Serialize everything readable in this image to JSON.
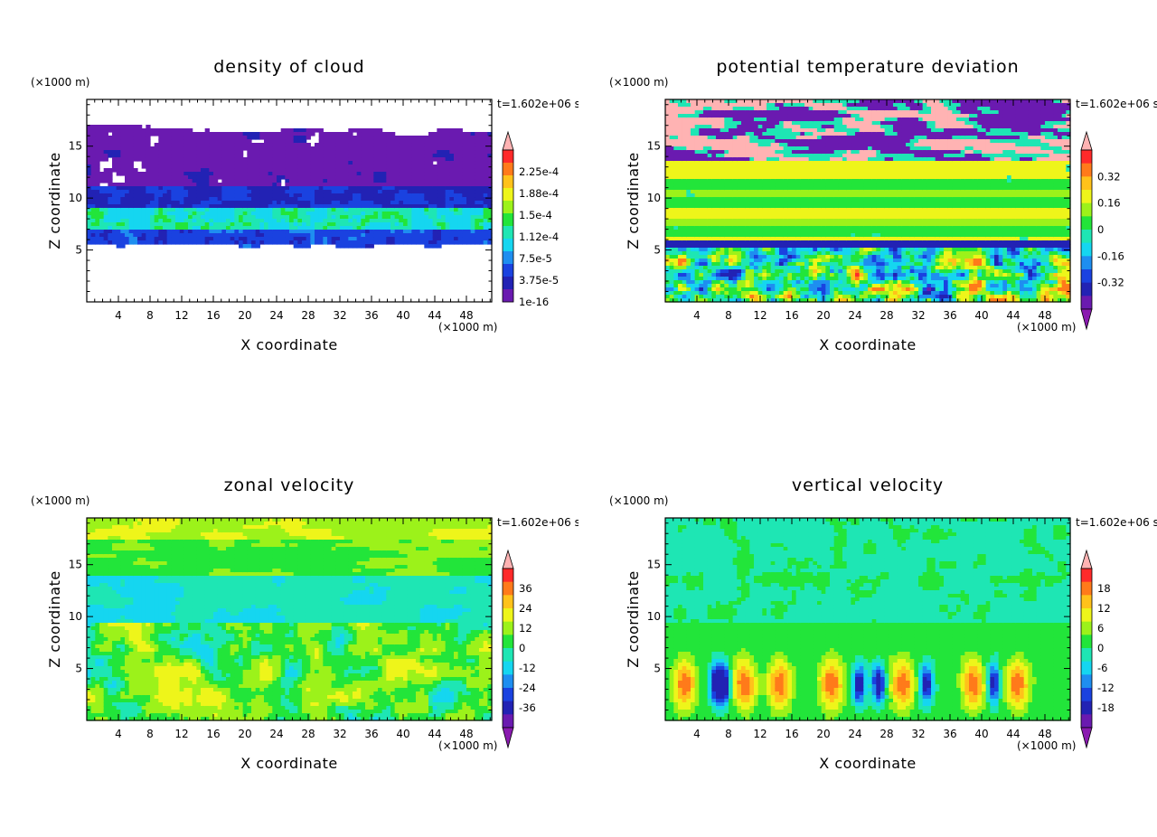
{
  "chart_data": [
    {
      "type": "heatmap",
      "title": "density of cloud",
      "xlabel": "X coordinate",
      "ylabel": "Z coordinate",
      "x_unit": "(×1000 m)",
      "y_unit": "(×1000 m)",
      "time": "t=1.602e+06 s",
      "xlim": [
        0,
        51.2
      ],
      "ylim": [
        0,
        19.5
      ],
      "xticks": [
        4,
        8,
        12,
        16,
        20,
        24,
        28,
        32,
        36,
        40,
        44,
        48
      ],
      "yticks": [
        5,
        10,
        15
      ],
      "colorbar_labels": [
        "2.25e-4",
        "1.88e-4",
        "1.5e-4",
        "1.12e-4",
        "7.5e-5",
        "3.75e-5",
        "1e-16"
      ],
      "colorbar_colors": [
        "#ffb3b3",
        "#ff2a2a",
        "#ff7a1a",
        "#ffc21a",
        "#eef51a",
        "#9cf21a",
        "#22e53a",
        "#1ee6b4",
        "#15d6f0",
        "#1e8ef0",
        "#1a42e0",
        "#2222b4",
        "#6a1ab0"
      ],
      "colorbar_extend": "max"
    },
    {
      "type": "heatmap",
      "title": "potential temperature deviation",
      "xlabel": "X coordinate",
      "ylabel": "Z coordinate",
      "x_unit": "(×1000 m)",
      "y_unit": "(×1000 m)",
      "time": "t=1.602e+06 s",
      "xlim": [
        0,
        51.2
      ],
      "ylim": [
        0,
        19.5
      ],
      "xticks": [
        4,
        8,
        12,
        16,
        20,
        24,
        28,
        32,
        36,
        40,
        44,
        48
      ],
      "yticks": [
        5,
        10,
        15
      ],
      "colorbar_labels": [
        "0.32",
        "0.16",
        "0",
        "-0.16",
        "-0.32"
      ],
      "colorbar_colors": [
        "#ffb3b3",
        "#ff2a2a",
        "#ff7a1a",
        "#ffc21a",
        "#eef51a",
        "#9cf21a",
        "#22e53a",
        "#1ee6b4",
        "#15d6f0",
        "#1e8ef0",
        "#1a42e0",
        "#2222b4",
        "#6a1ab0",
        "#8a1ab0"
      ],
      "colorbar_extend": "both"
    },
    {
      "type": "heatmap",
      "title": "zonal velocity",
      "xlabel": "X coordinate",
      "ylabel": "Z coordinate",
      "x_unit": "(×1000 m)",
      "y_unit": "(×1000 m)",
      "time": "t=1.602e+06 s",
      "xlim": [
        0,
        51.2
      ],
      "ylim": [
        0,
        19.5
      ],
      "xticks": [
        4,
        8,
        12,
        16,
        20,
        24,
        28,
        32,
        36,
        40,
        44,
        48
      ],
      "yticks": [
        5,
        10,
        15
      ],
      "colorbar_labels": [
        "36",
        "24",
        "12",
        "0",
        "-12",
        "-24",
        "-36"
      ],
      "colorbar_colors": [
        "#ffb3b3",
        "#ff2a2a",
        "#ff7a1a",
        "#ffc21a",
        "#eef51a",
        "#9cf21a",
        "#22e53a",
        "#1ee6b4",
        "#15d6f0",
        "#1e8ef0",
        "#1a42e0",
        "#2222b4",
        "#6a1ab0",
        "#8a1ab0"
      ],
      "colorbar_extend": "both"
    },
    {
      "type": "heatmap",
      "title": "vertical velocity",
      "xlabel": "X coordinate",
      "ylabel": "Z coordinate",
      "x_unit": "(×1000 m)",
      "y_unit": "(×1000 m)",
      "time": "t=1.602e+06 s",
      "xlim": [
        0,
        51.2
      ],
      "ylim": [
        0,
        19.5
      ],
      "xticks": [
        4,
        8,
        12,
        16,
        20,
        24,
        28,
        32,
        36,
        40,
        44,
        48
      ],
      "yticks": [
        5,
        10,
        15
      ],
      "colorbar_labels": [
        "18",
        "12",
        "6",
        "0",
        "-6",
        "-12",
        "-18"
      ],
      "colorbar_colors": [
        "#ffb3b3",
        "#ff2a2a",
        "#ff7a1a",
        "#ffc21a",
        "#eef51a",
        "#9cf21a",
        "#22e53a",
        "#1ee6b4",
        "#15d6f0",
        "#1e8ef0",
        "#1a42e0",
        "#2222b4",
        "#6a1ab0",
        "#8a1ab0"
      ],
      "colorbar_extend": "both"
    }
  ]
}
